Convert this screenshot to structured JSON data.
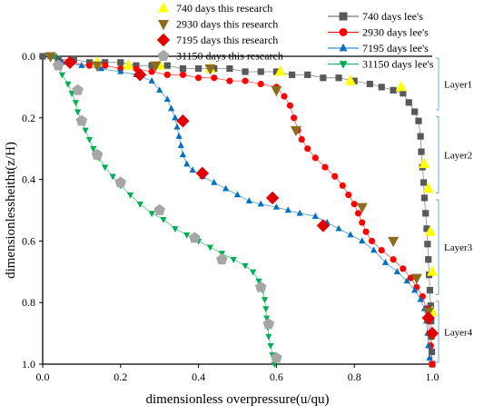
{
  "chart_data": {
    "type": "scatter",
    "xlabel": "dimensionless overpressure(u/qu)",
    "ylabel": "dimensionlessheitht(z/H)",
    "xlim": [
      0,
      1.0
    ],
    "ylim": [
      0,
      1.0
    ],
    "y_inverted": true,
    "x_axis_position": "top",
    "x_ticks": [
      "0.0",
      "0.2",
      "0.4",
      "0.6",
      "0.8",
      "1.0"
    ],
    "y_ticks": [
      "0.0",
      "0.2",
      "0.4",
      "0.6",
      "0.8",
      "1.0"
    ],
    "grid": false,
    "legend_placement": "top",
    "layers": [
      {
        "label": "Layer1",
        "y_range": [
          0.0,
          0.18
        ]
      },
      {
        "label": "Layer2",
        "y_range": [
          0.19,
          0.45
        ]
      },
      {
        "label": "Layer3",
        "y_range": [
          0.46,
          0.78
        ]
      },
      {
        "label": "Layer4",
        "y_range": [
          0.79,
          1.0
        ]
      }
    ],
    "series": [
      {
        "name": "740 days lee's",
        "marker": "square",
        "color": "#595959",
        "line": true,
        "points": [
          [
            0.0,
            0.0
          ],
          [
            0.04,
            0.01
          ],
          [
            0.08,
            0.01
          ],
          [
            0.12,
            0.02
          ],
          [
            0.16,
            0.02
          ],
          [
            0.2,
            0.02
          ],
          [
            0.24,
            0.03
          ],
          [
            0.28,
            0.03
          ],
          [
            0.32,
            0.03
          ],
          [
            0.36,
            0.04
          ],
          [
            0.4,
            0.04
          ],
          [
            0.44,
            0.04
          ],
          [
            0.48,
            0.04
          ],
          [
            0.52,
            0.05
          ],
          [
            0.56,
            0.05
          ],
          [
            0.6,
            0.05
          ],
          [
            0.64,
            0.06
          ],
          [
            0.68,
            0.06
          ],
          [
            0.72,
            0.07
          ],
          [
            0.76,
            0.07
          ],
          [
            0.8,
            0.08
          ],
          [
            0.84,
            0.09
          ],
          [
            0.87,
            0.1
          ],
          [
            0.9,
            0.11
          ],
          [
            0.925,
            0.12
          ],
          [
            0.94,
            0.15
          ],
          [
            0.955,
            0.18
          ],
          [
            0.965,
            0.21
          ],
          [
            0.97,
            0.26
          ],
          [
            0.972,
            0.31
          ],
          [
            0.975,
            0.36
          ],
          [
            0.978,
            0.41
          ],
          [
            0.98,
            0.46
          ],
          [
            0.983,
            0.51
          ],
          [
            0.986,
            0.56
          ],
          [
            0.988,
            0.61
          ],
          [
            0.99,
            0.66
          ],
          [
            0.992,
            0.71
          ],
          [
            0.994,
            0.76
          ],
          [
            0.996,
            0.81
          ],
          [
            0.997,
            0.86
          ],
          [
            0.998,
            0.91
          ],
          [
            0.999,
            0.96
          ],
          [
            1.0,
            1.0
          ]
        ]
      },
      {
        "name": "2930 days lee's",
        "marker": "circle",
        "color": "#ff0000",
        "line": true,
        "points": [
          [
            0.02,
            0.0
          ],
          [
            0.07,
            0.02
          ],
          [
            0.12,
            0.03
          ],
          [
            0.16,
            0.03
          ],
          [
            0.2,
            0.04
          ],
          [
            0.24,
            0.04
          ],
          [
            0.28,
            0.05
          ],
          [
            0.32,
            0.06
          ],
          [
            0.36,
            0.06
          ],
          [
            0.4,
            0.07
          ],
          [
            0.44,
            0.07
          ],
          [
            0.48,
            0.08
          ],
          [
            0.52,
            0.08
          ],
          [
            0.56,
            0.09
          ],
          [
            0.6,
            0.1
          ],
          [
            0.62,
            0.13
          ],
          [
            0.635,
            0.16
          ],
          [
            0.645,
            0.2
          ],
          [
            0.655,
            0.24
          ],
          [
            0.665,
            0.27
          ],
          [
            0.68,
            0.3
          ],
          [
            0.7,
            0.33
          ],
          [
            0.725,
            0.36
          ],
          [
            0.75,
            0.39
          ],
          [
            0.77,
            0.42
          ],
          [
            0.785,
            0.45
          ],
          [
            0.8,
            0.48
          ],
          [
            0.81,
            0.51
          ],
          [
            0.82,
            0.54
          ],
          [
            0.83,
            0.57
          ],
          [
            0.845,
            0.6
          ],
          [
            0.87,
            0.63
          ],
          [
            0.9,
            0.66
          ],
          [
            0.925,
            0.69
          ],
          [
            0.945,
            0.72
          ],
          [
            0.96,
            0.75
          ],
          [
            0.975,
            0.78
          ],
          [
            0.985,
            0.82
          ],
          [
            0.99,
            0.86
          ],
          [
            0.993,
            0.9
          ],
          [
            0.996,
            0.94
          ],
          [
            1.0,
            1.0
          ]
        ]
      },
      {
        "name": "7195 days lee's",
        "marker": "triangle-up",
        "color": "#0070c0",
        "line": true,
        "points": [
          [
            0.02,
            0.0
          ],
          [
            0.05,
            0.02
          ],
          [
            0.1,
            0.03
          ],
          [
            0.15,
            0.04
          ],
          [
            0.2,
            0.05
          ],
          [
            0.24,
            0.06
          ],
          [
            0.28,
            0.08
          ],
          [
            0.3,
            0.11
          ],
          [
            0.32,
            0.14
          ],
          [
            0.33,
            0.17
          ],
          [
            0.34,
            0.2
          ],
          [
            0.345,
            0.23
          ],
          [
            0.35,
            0.26
          ],
          [
            0.355,
            0.29
          ],
          [
            0.36,
            0.32
          ],
          [
            0.37,
            0.35
          ],
          [
            0.385,
            0.37
          ],
          [
            0.41,
            0.39
          ],
          [
            0.44,
            0.41
          ],
          [
            0.47,
            0.43
          ],
          [
            0.5,
            0.45
          ],
          [
            0.53,
            0.47
          ],
          [
            0.56,
            0.48
          ],
          [
            0.6,
            0.49
          ],
          [
            0.63,
            0.5
          ],
          [
            0.66,
            0.51
          ],
          [
            0.7,
            0.52
          ],
          [
            0.73,
            0.54
          ],
          [
            0.76,
            0.56
          ],
          [
            0.79,
            0.58
          ],
          [
            0.82,
            0.6
          ],
          [
            0.85,
            0.63
          ],
          [
            0.88,
            0.67
          ],
          [
            0.91,
            0.7
          ],
          [
            0.935,
            0.73
          ],
          [
            0.955,
            0.76
          ],
          [
            0.97,
            0.79
          ],
          [
            0.98,
            0.82
          ],
          [
            0.985,
            0.86
          ],
          [
            0.988,
            0.9
          ],
          [
            0.99,
            0.94
          ],
          [
            0.993,
            0.98
          ]
        ]
      },
      {
        "name": "31150 days lee's",
        "marker": "triangle-down",
        "color": "#00b050",
        "line": true,
        "points": [
          [
            0.03,
            0.0
          ],
          [
            0.04,
            0.03
          ],
          [
            0.05,
            0.06
          ],
          [
            0.065,
            0.09
          ],
          [
            0.075,
            0.12
          ],
          [
            0.085,
            0.15
          ],
          [
            0.09,
            0.18
          ],
          [
            0.1,
            0.21
          ],
          [
            0.11,
            0.24
          ],
          [
            0.12,
            0.27
          ],
          [
            0.13,
            0.3
          ],
          [
            0.145,
            0.33
          ],
          [
            0.16,
            0.36
          ],
          [
            0.18,
            0.39
          ],
          [
            0.2,
            0.42
          ],
          [
            0.225,
            0.45
          ],
          [
            0.25,
            0.48
          ],
          [
            0.28,
            0.51
          ],
          [
            0.31,
            0.53
          ],
          [
            0.34,
            0.56
          ],
          [
            0.37,
            0.58
          ],
          [
            0.4,
            0.6
          ],
          [
            0.43,
            0.62
          ],
          [
            0.46,
            0.64
          ],
          [
            0.49,
            0.66
          ],
          [
            0.52,
            0.68
          ],
          [
            0.54,
            0.7
          ],
          [
            0.555,
            0.73
          ],
          [
            0.565,
            0.76
          ],
          [
            0.57,
            0.79
          ],
          [
            0.573,
            0.82
          ],
          [
            0.575,
            0.85
          ],
          [
            0.578,
            0.88
          ],
          [
            0.58,
            0.91
          ],
          [
            0.585,
            0.94
          ],
          [
            0.59,
            0.97
          ],
          [
            0.595,
            1.0
          ]
        ]
      },
      {
        "name": "740 days this research",
        "marker": "triangle-up",
        "color": "#ffff00",
        "line": false,
        "points": [
          [
            0.14,
            0.02
          ],
          [
            0.22,
            0.03
          ],
          [
            0.3,
            0.03
          ],
          [
            0.43,
            0.04
          ],
          [
            0.61,
            0.05
          ],
          [
            0.79,
            0.08
          ],
          [
            0.92,
            0.1
          ],
          [
            0.98,
            0.35
          ],
          [
            0.99,
            0.43
          ],
          [
            0.995,
            0.57
          ],
          [
            1.0,
            0.7
          ],
          [
            1.0,
            0.83
          ]
        ]
      },
      {
        "name": "2930 days this research",
        "marker": "triangle-down",
        "color": "#8c6d1f",
        "line": false,
        "points": [
          [
            0.02,
            0.0
          ],
          [
            0.14,
            0.03
          ],
          [
            0.29,
            0.03
          ],
          [
            0.43,
            0.04
          ],
          [
            0.6,
            0.11
          ],
          [
            0.65,
            0.24
          ],
          [
            0.82,
            0.49
          ],
          [
            0.9,
            0.6
          ],
          [
            0.96,
            0.72
          ],
          [
            0.99,
            0.83
          ]
        ]
      },
      {
        "name": "7195 days this research",
        "marker": "diamond",
        "color": "#e00000",
        "line": false,
        "points": [
          [
            0.07,
            0.02
          ],
          [
            0.25,
            0.06
          ],
          [
            0.36,
            0.21
          ],
          [
            0.41,
            0.38
          ],
          [
            0.59,
            0.46
          ],
          [
            0.72,
            0.55
          ],
          [
            0.99,
            0.85
          ],
          [
            1.0,
            0.9
          ]
        ]
      },
      {
        "name": "31150 days this research",
        "marker": "pentagon",
        "color": "#a6a6a6",
        "line": false,
        "points": [
          [
            0.04,
            0.03
          ],
          [
            0.09,
            0.11
          ],
          [
            0.1,
            0.21
          ],
          [
            0.14,
            0.32
          ],
          [
            0.2,
            0.41
          ],
          [
            0.3,
            0.5
          ],
          [
            0.39,
            0.59
          ],
          [
            0.46,
            0.66
          ],
          [
            0.56,
            0.75
          ],
          [
            0.58,
            0.87
          ],
          [
            0.6,
            0.98
          ]
        ]
      }
    ]
  }
}
